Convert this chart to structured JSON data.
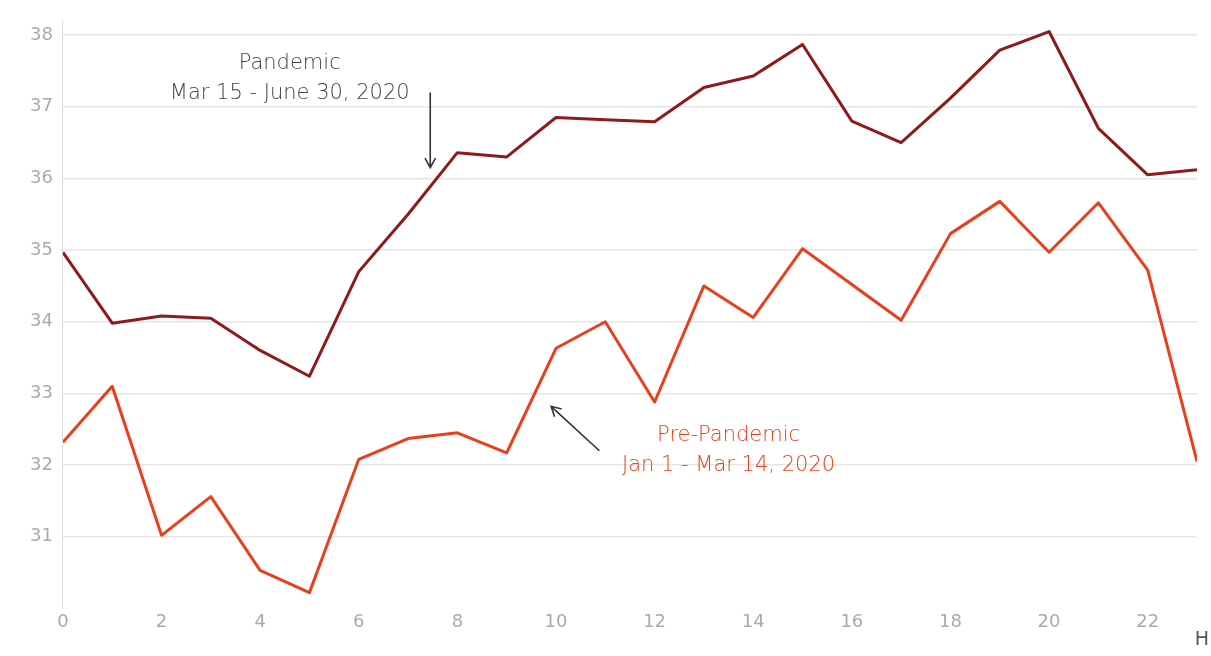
{
  "chart_data": {
    "type": "line",
    "xlabel": "H",
    "x": [
      0,
      1,
      2,
      3,
      4,
      5,
      6,
      7,
      8,
      9,
      10,
      11,
      12,
      13,
      14,
      15,
      16,
      17,
      18,
      19,
      20,
      21,
      22,
      23
    ],
    "series": [
      {
        "color": "#8e1b1b",
        "values": [
          34.97,
          33.98,
          34.08,
          34.05,
          33.6,
          33.24,
          34.7,
          35.5,
          36.36,
          36.3,
          36.85,
          36.82,
          36.79,
          37.27,
          37.43,
          37.87,
          36.8,
          36.5,
          37.12,
          37.79,
          38.05,
          36.7,
          36.05,
          36.12
        ]
      },
      {
        "color": "#e8401c",
        "values": [
          32.32,
          33.1,
          31.02,
          31.56,
          30.53,
          30.22,
          32.08,
          32.37,
          32.45,
          32.17,
          33.63,
          34.0,
          32.88,
          34.5,
          34.06,
          35.02,
          34.52,
          34.02,
          35.23,
          35.68,
          34.97,
          35.66,
          34.72,
          32.05
        ]
      }
    ],
    "xlim": [
      0,
      23
    ],
    "xticks": [
      0,
      2,
      4,
      6,
      8,
      10,
      12,
      14,
      16,
      18,
      20,
      22
    ],
    "ylim": [
      30,
      38.2
    ],
    "yticks": [
      31,
      32,
      33,
      34,
      35,
      36,
      37,
      38
    ],
    "grid": "y",
    "legend": false,
    "marker": "none",
    "line_style": "solid",
    "annotations": [
      "Pandemic\nMar 15 - June 30, 2020",
      "Pre-Pandemic\nJan 1 - Mar 14, 2020"
    ]
  }
}
